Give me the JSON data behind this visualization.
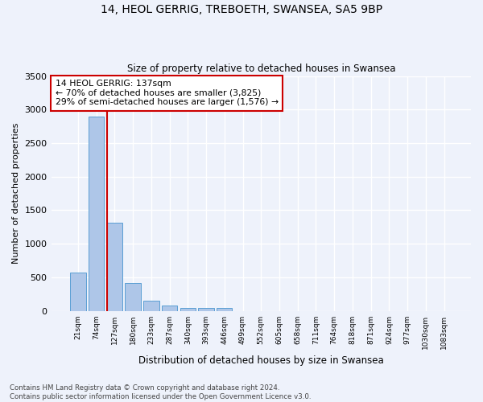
{
  "title_line1": "14, HEOL GERRIG, TREBOETH, SWANSEA, SA5 9BP",
  "title_line2": "Size of property relative to detached houses in Swansea",
  "xlabel": "Distribution of detached houses by size in Swansea",
  "ylabel": "Number of detached properties",
  "categories": [
    "21sqm",
    "74sqm",
    "127sqm",
    "180sqm",
    "233sqm",
    "287sqm",
    "340sqm",
    "393sqm",
    "446sqm",
    "499sqm",
    "552sqm",
    "605sqm",
    "658sqm",
    "711sqm",
    "764sqm",
    "818sqm",
    "871sqm",
    "924sqm",
    "977sqm",
    "1030sqm",
    "1083sqm"
  ],
  "values": [
    575,
    2900,
    1310,
    415,
    155,
    80,
    50,
    45,
    45,
    0,
    0,
    0,
    0,
    0,
    0,
    0,
    0,
    0,
    0,
    0,
    0
  ],
  "bar_color": "#aec6e8",
  "bar_edge_color": "#5a9fd4",
  "vline_x_index": 2,
  "vline_color": "#cc0000",
  "annotation_line1": "14 HEOL GERRIG: 137sqm",
  "annotation_line2": "← 70% of detached houses are smaller (3,825)",
  "annotation_line3": "29% of semi-detached houses are larger (1,576) →",
  "box_edge_color": "#cc0000",
  "ylim": [
    0,
    3500
  ],
  "yticks": [
    0,
    500,
    1000,
    1500,
    2000,
    2500,
    3000,
    3500
  ],
  "background_color": "#eef2fb",
  "grid_color": "#ffffff",
  "footer_line1": "Contains HM Land Registry data © Crown copyright and database right 2024.",
  "footer_line2": "Contains public sector information licensed under the Open Government Licence v3.0."
}
